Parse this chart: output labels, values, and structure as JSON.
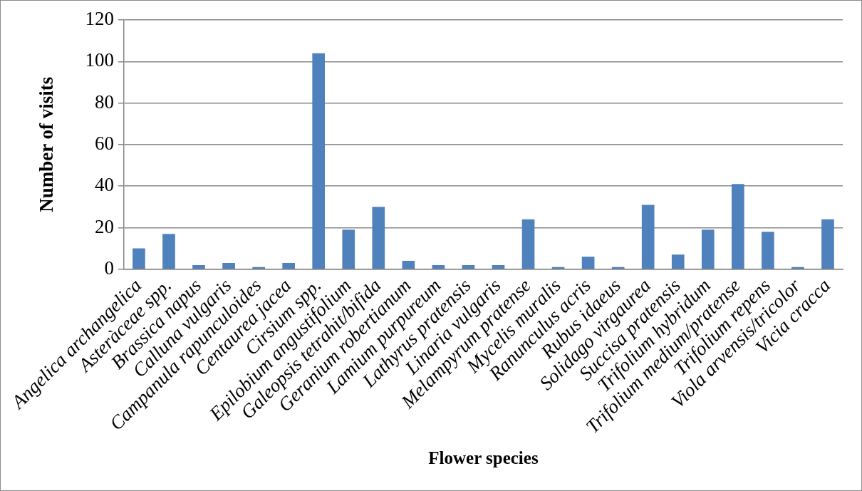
{
  "chart_data": {
    "type": "bar",
    "xlabel": "Flower species",
    "ylabel": "Number of visits",
    "categories": [
      "Angelica archangelica",
      "Asteràceae spp.",
      "Brassica napus",
      "Calluna vulgaris",
      "Campanula rapunculoides",
      "Centaurea jacea",
      "Cirsium spp.",
      "Epilobium angustifolium",
      "Galeopsis tetrahit/bifida",
      "Geranium robertianum",
      "Lamium purpureum",
      "Lathyrus pratensis",
      "Linaria vulgaris",
      "Melampyrum pratense",
      "Mycelis muralis",
      "Ranunculus acris",
      "Rubus idaeus",
      "Solidago virgaurea",
      "Succisa pratensis",
      "Trifolium hybridum",
      "Trifolium medium/pratense",
      "Trifolium repens",
      "Viola arvensis/tricolor",
      "Vicia cracca"
    ],
    "values": [
      10,
      17,
      2,
      3,
      1,
      3,
      104,
      19,
      30,
      4,
      2,
      2,
      2,
      24,
      1,
      6,
      1,
      31,
      7,
      19,
      41,
      18,
      1,
      24
    ],
    "color": "#4f81bd",
    "ylim": [
      0,
      120
    ],
    "yticks": [
      0,
      20,
      40,
      60,
      80,
      100,
      120
    ],
    "grid": "y"
  }
}
